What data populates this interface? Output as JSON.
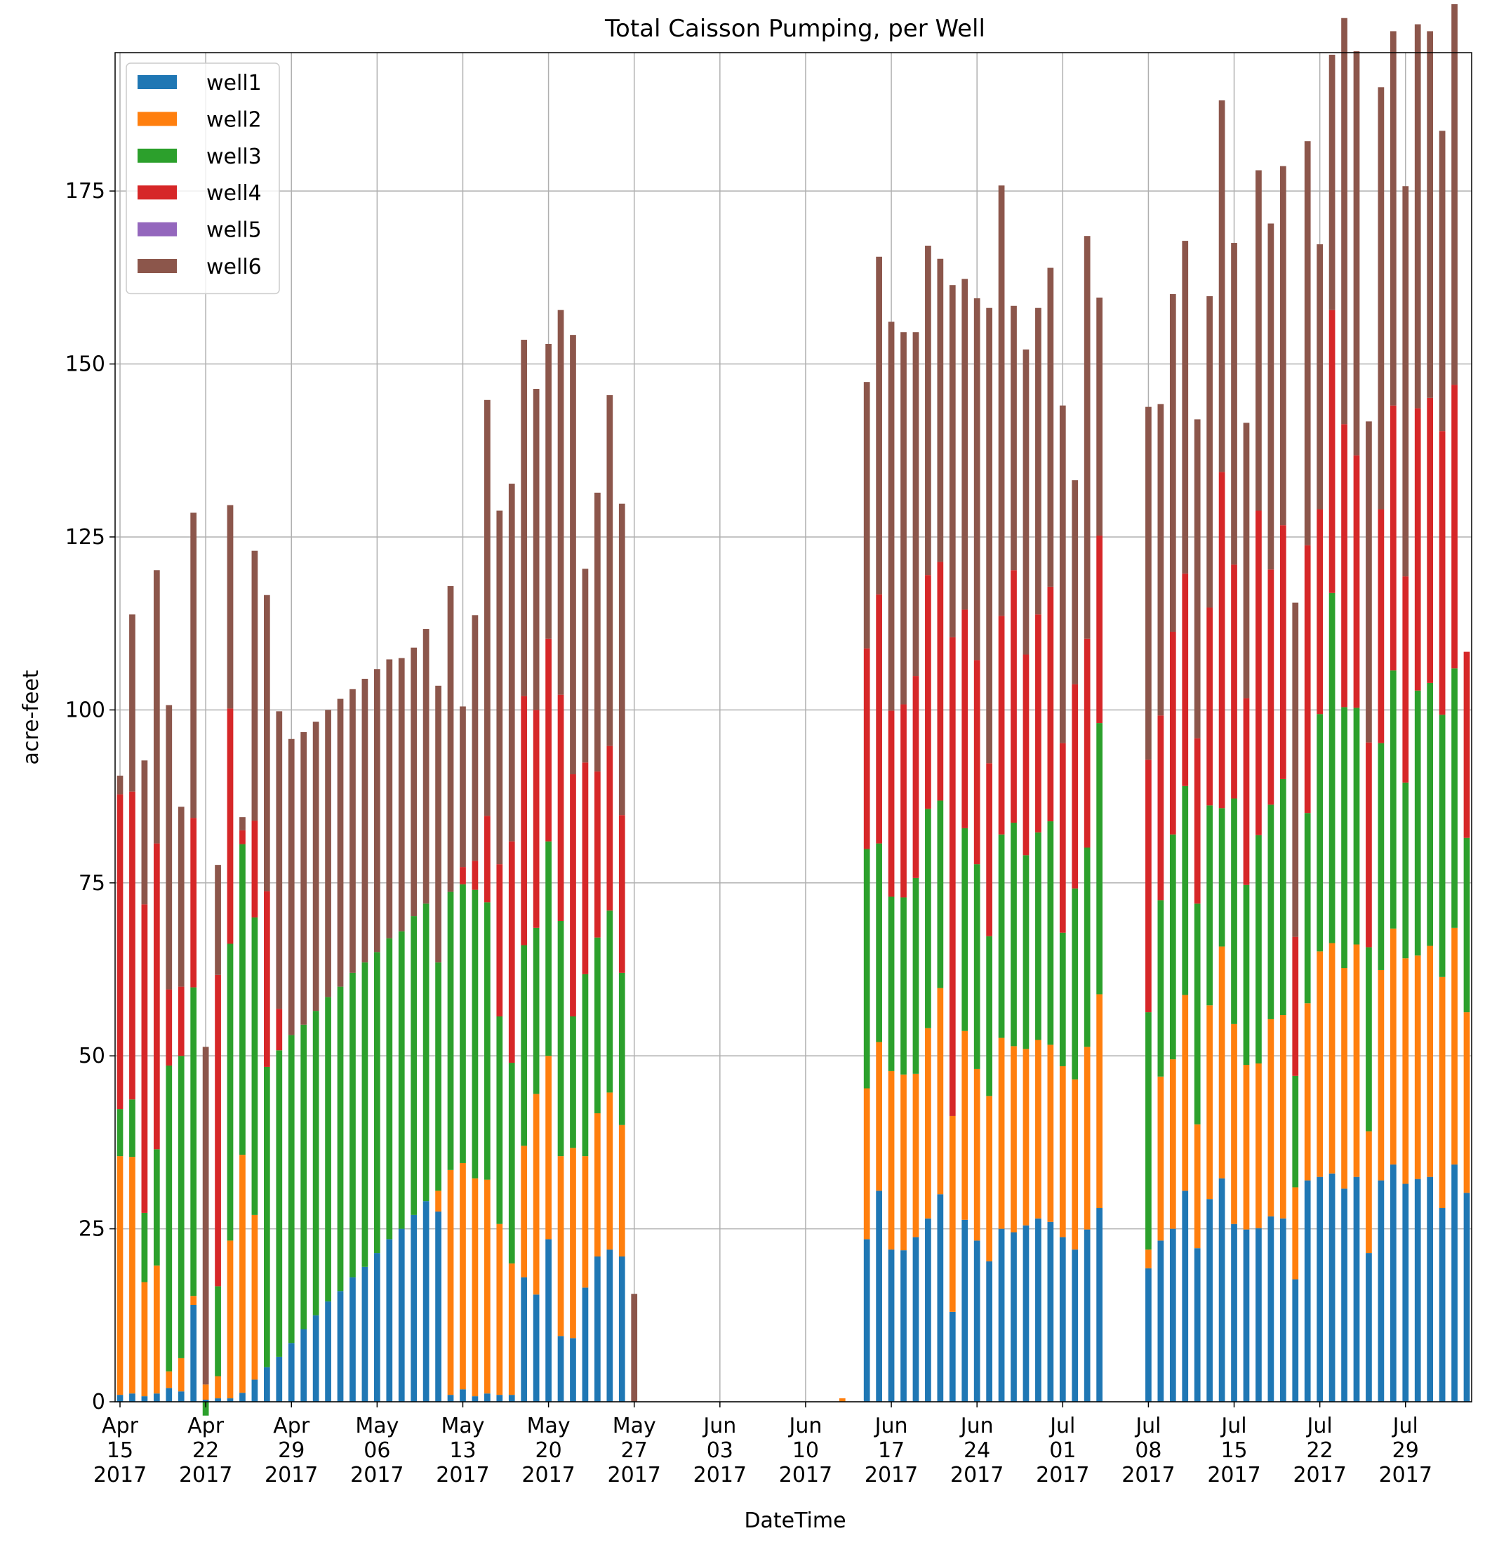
{
  "chart_data": {
    "type": "bar",
    "stacked": true,
    "title": "Total Caisson Pumping, per Well",
    "xlabel": "DateTime",
    "ylabel": "acre-feet",
    "ylim": [
      0,
      195
    ],
    "yticks": [
      0,
      25,
      50,
      75,
      100,
      125,
      150,
      175
    ],
    "grid": true,
    "legend_position": "upper-left",
    "x_start_date": "2017-04-15",
    "x_ticks": [
      {
        "day": 0,
        "month": "Apr",
        "date": "15",
        "year": "2017"
      },
      {
        "day": 7,
        "month": "Apr",
        "date": "22",
        "year": "2017"
      },
      {
        "day": 14,
        "month": "Apr",
        "date": "29",
        "year": "2017"
      },
      {
        "day": 21,
        "month": "May",
        "date": "06",
        "year": "2017"
      },
      {
        "day": 28,
        "month": "May",
        "date": "13",
        "year": "2017"
      },
      {
        "day": 35,
        "month": "May",
        "date": "20",
        "year": "2017"
      },
      {
        "day": 42,
        "month": "May",
        "date": "27",
        "year": "2017"
      },
      {
        "day": 49,
        "month": "Jun",
        "date": "03",
        "year": "2017"
      },
      {
        "day": 56,
        "month": "Jun",
        "date": "10",
        "year": "2017"
      },
      {
        "day": 63,
        "month": "Jun",
        "date": "17",
        "year": "2017"
      },
      {
        "day": 70,
        "month": "Jun",
        "date": "24",
        "year": "2017"
      },
      {
        "day": 77,
        "month": "Jul",
        "date": "01",
        "year": "2017"
      },
      {
        "day": 84,
        "month": "Jul",
        "date": "08",
        "year": "2017"
      },
      {
        "day": 91,
        "month": "Jul",
        "date": "15",
        "year": "2017"
      },
      {
        "day": 98,
        "month": "Jul",
        "date": "22",
        "year": "2017"
      },
      {
        "day": 105,
        "month": "Jul",
        "date": "29",
        "year": "2017"
      }
    ],
    "series": [
      {
        "name": "well1",
        "color": "#1f77b4",
        "values": [
          1.0,
          1.2,
          0.8,
          1.2,
          2.0,
          1.5,
          14.0,
          0.3,
          0.5,
          0.5,
          1.3,
          3.2,
          5.0,
          6.5,
          8.5,
          10.5,
          12.5,
          14.5,
          16.0,
          18.0,
          19.5,
          21.5,
          23.5,
          25.0,
          27.0,
          29.0,
          27.5,
          1.0,
          1.8,
          0.8,
          1.2,
          1.0,
          1.0,
          18.0,
          15.5,
          23.5,
          9.5,
          9.2,
          16.5,
          21.0,
          22.0,
          21.0,
          0,
          0,
          0,
          0,
          0,
          0,
          0,
          0,
          0,
          0,
          0,
          0,
          0,
          0,
          0,
          0,
          0,
          0,
          0,
          23.5,
          30.5,
          22.0,
          21.9,
          23.8,
          26.5,
          30.0,
          13.0,
          26.3,
          23.3,
          20.3,
          25.0,
          24.5,
          25.5,
          26.5,
          26.0,
          23.8,
          22.0,
          24.9,
          28.0,
          0,
          0,
          0,
          19.3,
          23.3,
          25.0,
          30.5,
          22.2,
          29.3,
          32.3,
          25.7,
          24.9,
          25.1,
          26.8,
          26.5,
          17.7,
          32.0,
          32.5,
          33.0,
          30.8,
          32.5,
          21.5,
          32.0,
          34.3,
          31.5,
          32.2,
          32.5,
          28.0,
          34.3,
          30.2
        ]
      },
      {
        "name": "well2",
        "color": "#ff7f0e",
        "values": [
          34.5,
          34.2,
          16.5,
          18.5,
          2.4,
          4.8,
          1.3,
          2.2,
          3.2,
          22.8,
          34.4,
          23.8,
          0,
          0,
          0,
          0,
          0,
          0,
          0,
          0,
          0,
          0,
          0,
          0,
          0,
          0,
          3.0,
          32.5,
          32.7,
          31.5,
          30.9,
          24.7,
          19.0,
          19.0,
          29.0,
          26.5,
          26.0,
          27.5,
          19.0,
          20.7,
          22.7,
          19.0,
          0,
          0,
          0,
          0,
          0,
          0,
          0,
          0,
          0,
          0,
          0,
          0,
          0,
          0,
          0,
          0,
          0,
          0.5,
          0,
          21.8,
          21.5,
          25.8,
          25.4,
          23.6,
          27.5,
          29.8,
          28.3,
          27.3,
          24.8,
          23.9,
          27.6,
          26.9,
          25.5,
          25.8,
          25.6,
          24.7,
          24.6,
          26.4,
          30.9,
          0,
          0,
          0,
          2.7,
          23.7,
          24.5,
          28.3,
          17.9,
          28.0,
          33.5,
          28.9,
          23.8,
          23.8,
          28.5,
          29.4,
          13.3,
          25.6,
          32.6,
          33.3,
          31.9,
          33.6,
          17.6,
          30.4,
          34.1,
          32.6,
          32.3,
          33.4,
          33.4,
          34.2,
          26.1
        ]
      },
      {
        "name": "well3",
        "color": "#2ca02c",
        "values": [
          6.8,
          8.3,
          10.0,
          16.8,
          44.2,
          43.7,
          44.6,
          -2.0,
          13.0,
          42.9,
          44.9,
          43.0,
          43.4,
          44.3,
          44.5,
          44.0,
          44.0,
          44.0,
          44.0,
          44.0,
          44.0,
          43.5,
          43.5,
          43.0,
          43.2,
          43.0,
          33.0,
          40.2,
          40.3,
          41.7,
          40.1,
          30.0,
          29.0,
          29.0,
          24.0,
          31.0,
          34.0,
          19.0,
          26.3,
          25.4,
          26.3,
          22.0,
          0,
          0,
          0,
          0,
          0,
          0,
          0,
          0,
          0,
          0,
          0,
          0,
          0,
          0,
          0,
          0,
          0,
          0,
          0,
          34.6,
          28.7,
          25.2,
          25.6,
          28.3,
          31.7,
          27.1,
          0,
          29.3,
          29.6,
          23.1,
          29.4,
          32.3,
          28.0,
          30.0,
          32.3,
          19.3,
          27.6,
          28.8,
          39.2,
          0,
          0,
          0,
          34.3,
          25.5,
          32.5,
          30.2,
          31.9,
          28.9,
          20.0,
          32.6,
          26.0,
          33.0,
          31.0,
          34.1,
          16.1,
          27.5,
          34.3,
          50.6,
          37.7,
          34.2,
          26.6,
          32.8,
          37.3,
          25.4,
          38.3,
          38.0,
          37.9,
          37.5,
          25.2
        ]
      },
      {
        "name": "well4",
        "color": "#d62728",
        "values": [
          45.5,
          44.5,
          44.6,
          44.2,
          11.0,
          10.0,
          24.5,
          0,
          45.0,
          34.0,
          2.0,
          14.0,
          25.4,
          6.0,
          0,
          0,
          0,
          0,
          0,
          0,
          0,
          0,
          0,
          0,
          0,
          0,
          0,
          0,
          2.5,
          4.2,
          12.5,
          22.0,
          32.0,
          36.0,
          31.5,
          29.3,
          32.7,
          35.0,
          30.6,
          24.0,
          23.8,
          22.8,
          0,
          0,
          0,
          0,
          0,
          0,
          0,
          0,
          0,
          0,
          0,
          0,
          0,
          0,
          0,
          0,
          0,
          0,
          0,
          29.0,
          36.0,
          26.9,
          27.9,
          29.2,
          33.8,
          34.5,
          69.2,
          31.6,
          29.5,
          25.0,
          31.6,
          36.5,
          29.0,
          31.5,
          33.9,
          27.4,
          29.5,
          30.2,
          27.1,
          0,
          0,
          0,
          36.5,
          26.7,
          29.3,
          30.7,
          23.9,
          28.6,
          48.6,
          33.8,
          27.0,
          46.9,
          34.0,
          36.7,
          20.1,
          38.7,
          29.6,
          40.9,
          40.9,
          36.5,
          29.6,
          33.8,
          38.3,
          29.8,
          40.8,
          41.2,
          41.0,
          41.0,
          26.9
        ]
      },
      {
        "name": "well5",
        "color": "#9467bd",
        "values": [
          0,
          0,
          0,
          0,
          0,
          0,
          0,
          0,
          0,
          0,
          0,
          0,
          0,
          0,
          0,
          0,
          0,
          0,
          0,
          0,
          0,
          0,
          0,
          0,
          0,
          0,
          0,
          0,
          0,
          0,
          0,
          0,
          0,
          0,
          0,
          0,
          0,
          0,
          0,
          0,
          0,
          0,
          0,
          0,
          0,
          0,
          0,
          0,
          0,
          0,
          0,
          0,
          0,
          0,
          0,
          0,
          0,
          0,
          0,
          0,
          0,
          0,
          0,
          0,
          0,
          0,
          0,
          0,
          0,
          0,
          0,
          0,
          0,
          0,
          0,
          0,
          0,
          0,
          0,
          0,
          0,
          0,
          0,
          0,
          0,
          0,
          0,
          0,
          0,
          0,
          0,
          0,
          0,
          0,
          0,
          0,
          0,
          0,
          0,
          0,
          0,
          0,
          0,
          0,
          0,
          0,
          0,
          0,
          0,
          0,
          0
        ]
      },
      {
        "name": "well6",
        "color": "#8c564b",
        "values": [
          2.7,
          25.6,
          20.8,
          39.5,
          41.1,
          26.0,
          44.1,
          48.8,
          15.9,
          29.4,
          1.9,
          39.0,
          42.8,
          43.0,
          42.8,
          42.3,
          41.8,
          41.5,
          41.6,
          41.0,
          41.0,
          40.9,
          40.3,
          39.5,
          38.8,
          39.7,
          40.0,
          44.2,
          23.2,
          35.5,
          60.1,
          51.1,
          51.7,
          51.5,
          46.4,
          42.6,
          55.6,
          63.5,
          28.0,
          40.3,
          50.7,
          45.0,
          15.6,
          0,
          0,
          0,
          0,
          0,
          0,
          0,
          0,
          0,
          0,
          0,
          0,
          0,
          0,
          0,
          0,
          0,
          0,
          38.5,
          48.8,
          56.2,
          53.8,
          49.7,
          47.6,
          43.8,
          50.9,
          47.8,
          52.3,
          65.8,
          62.2,
          38.2,
          44.1,
          44.3,
          46.1,
          48.8,
          29.5,
          58.2,
          34.4,
          0,
          0,
          0,
          51.0,
          45.0,
          48.8,
          48.1,
          46.1,
          45.0,
          53.7,
          46.5,
          39.8,
          49.2,
          50.0,
          51.9,
          48.3,
          58.4,
          38.3,
          36.9,
          58.7,
          58.4,
          46.4,
          61.0,
          54.1,
          56.4,
          55.5,
          53.0,
          43.4,
          55.0,
          0
        ]
      }
    ]
  }
}
